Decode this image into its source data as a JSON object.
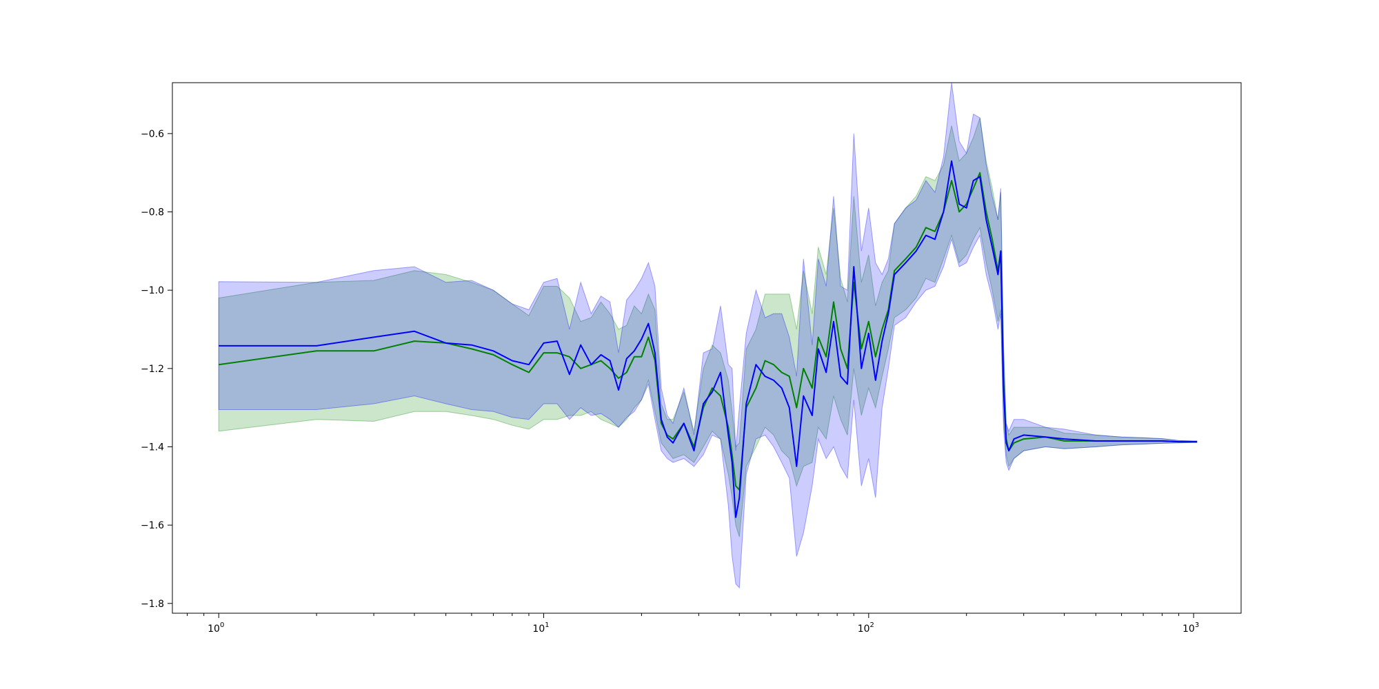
{
  "chart_data": {
    "type": "line",
    "title": "",
    "xlabel": "",
    "ylabel": "",
    "x_scale": "log",
    "xlim": [
      0.72,
      1400
    ],
    "ylim": [
      -1.825,
      -0.47
    ],
    "grid": false,
    "legend": "none",
    "x_ticks": [
      {
        "value": 1,
        "base": "10",
        "exp": "0"
      },
      {
        "value": 10,
        "base": "10",
        "exp": "1"
      },
      {
        "value": 100,
        "base": "10",
        "exp": "2"
      },
      {
        "value": 1000,
        "base": "10",
        "exp": "3"
      }
    ],
    "y_ticks": [
      {
        "value": -0.6,
        "label": "−0.6"
      },
      {
        "value": -0.8,
        "label": "−0.8"
      },
      {
        "value": -1.0,
        "label": "−1.0"
      },
      {
        "value": -1.2,
        "label": "−1.2"
      },
      {
        "value": -1.4,
        "label": "−1.4"
      },
      {
        "value": -1.6,
        "label": "−1.6"
      },
      {
        "value": -1.8,
        "label": "−1.8"
      }
    ],
    "series": [
      {
        "color": "#008000",
        "band_color": "#008000",
        "band_opacity": 0.2,
        "x": [
          1,
          2,
          3,
          4,
          5,
          6,
          7,
          8,
          9,
          10,
          11,
          12,
          13,
          14,
          15,
          16,
          17,
          18,
          19,
          20,
          21,
          22,
          23,
          24,
          25,
          27,
          29,
          31,
          33,
          35,
          37,
          38,
          39,
          40,
          42,
          45,
          48,
          51,
          54,
          57,
          60,
          63,
          67,
          70,
          74,
          78,
          82,
          86,
          90,
          95,
          100,
          105,
          110,
          115,
          120,
          130,
          140,
          150,
          160,
          170,
          180,
          190,
          200,
          210,
          220,
          230,
          240,
          250,
          255,
          260,
          265,
          270,
          280,
          300,
          350,
          400,
          500,
          600,
          700,
          800,
          900,
          1000,
          1024
        ],
        "y": [
          -1.19,
          -1.155,
          -1.155,
          -1.13,
          -1.135,
          -1.15,
          -1.165,
          -1.19,
          -1.21,
          -1.16,
          -1.16,
          -1.17,
          -1.2,
          -1.19,
          -1.18,
          -1.2,
          -1.225,
          -1.21,
          -1.17,
          -1.17,
          -1.12,
          -1.18,
          -1.34,
          -1.37,
          -1.38,
          -1.34,
          -1.4,
          -1.3,
          -1.25,
          -1.27,
          -1.35,
          -1.42,
          -1.5,
          -1.51,
          -1.3,
          -1.25,
          -1.18,
          -1.19,
          -1.21,
          -1.22,
          -1.3,
          -1.2,
          -1.25,
          -1.12,
          -1.17,
          -1.03,
          -1.15,
          -1.2,
          -0.98,
          -1.15,
          -1.08,
          -1.17,
          -1.1,
          -1.05,
          -0.95,
          -0.92,
          -0.89,
          -0.84,
          -0.85,
          -0.8,
          -0.72,
          -0.8,
          -0.78,
          -0.74,
          -0.7,
          -0.8,
          -0.87,
          -0.95,
          -0.9,
          -1.23,
          -1.38,
          -1.41,
          -1.39,
          -1.38,
          -1.375,
          -1.385,
          -1.385,
          -1.385,
          -1.385,
          -1.385,
          -1.387,
          -1.387,
          -1.387
        ],
        "lower": [
          -1.36,
          -1.33,
          -1.335,
          -1.31,
          -1.31,
          -1.32,
          -1.33,
          -1.345,
          -1.355,
          -1.33,
          -1.33,
          -1.32,
          -1.32,
          -1.31,
          -1.33,
          -1.34,
          -1.35,
          -1.33,
          -1.3,
          -1.28,
          -1.23,
          -1.31,
          -1.39,
          -1.41,
          -1.43,
          -1.42,
          -1.44,
          -1.4,
          -1.36,
          -1.38,
          -1.47,
          -1.53,
          -1.6,
          -1.63,
          -1.45,
          -1.4,
          -1.35,
          -1.37,
          -1.41,
          -1.43,
          -1.5,
          -1.45,
          -1.44,
          -1.35,
          -1.38,
          -1.27,
          -1.33,
          -1.37,
          -1.2,
          -1.32,
          -1.25,
          -1.3,
          -1.22,
          -1.15,
          -1.07,
          -1.05,
          -1.02,
          -0.97,
          -0.98,
          -0.92,
          -0.86,
          -0.93,
          -0.91,
          -0.87,
          -0.84,
          -0.93,
          -1.0,
          -1.08,
          -1.05,
          -1.33,
          -1.42,
          -1.45,
          -1.43,
          -1.41,
          -1.4,
          -1.405,
          -1.4,
          -1.395,
          -1.393,
          -1.391,
          -1.39,
          -1.389,
          -1.389
        ],
        "upper": [
          -1.02,
          -0.98,
          -0.975,
          -0.95,
          -0.96,
          -0.98,
          -1.0,
          -1.035,
          -1.065,
          -0.99,
          -0.99,
          -1.02,
          -1.08,
          -1.07,
          -1.03,
          -1.06,
          -1.1,
          -1.09,
          -1.04,
          -1.06,
          -1.01,
          -1.05,
          -1.29,
          -1.33,
          -1.33,
          -1.26,
          -1.36,
          -1.2,
          -1.14,
          -1.16,
          -1.23,
          -1.31,
          -1.4,
          -1.39,
          -1.15,
          -1.1,
          -1.01,
          -1.01,
          -1.01,
          -1.01,
          -1.1,
          -0.95,
          -1.06,
          -0.89,
          -0.96,
          -0.79,
          -0.97,
          -1.03,
          -0.76,
          -0.98,
          -0.91,
          -1.04,
          -0.98,
          -0.95,
          -0.83,
          -0.79,
          -0.76,
          -0.71,
          -0.72,
          -0.68,
          -0.58,
          -0.67,
          -0.65,
          -0.61,
          -0.56,
          -0.67,
          -0.74,
          -0.82,
          -0.75,
          -1.13,
          -1.34,
          -1.37,
          -1.35,
          -1.35,
          -1.35,
          -1.365,
          -1.37,
          -1.375,
          -1.377,
          -1.379,
          -1.384,
          -1.385,
          -1.385
        ]
      },
      {
        "color": "#0000ff",
        "band_color": "#0000ff",
        "band_opacity": 0.2,
        "x": [
          1,
          2,
          3,
          4,
          5,
          6,
          7,
          8,
          9,
          10,
          11,
          12,
          13,
          14,
          15,
          16,
          17,
          18,
          19,
          20,
          21,
          22,
          23,
          24,
          25,
          27,
          29,
          31,
          33,
          35,
          37,
          38,
          39,
          40,
          42,
          45,
          48,
          51,
          54,
          57,
          60,
          63,
          67,
          70,
          74,
          78,
          82,
          86,
          90,
          95,
          100,
          105,
          110,
          115,
          120,
          130,
          140,
          150,
          160,
          170,
          180,
          190,
          200,
          210,
          220,
          230,
          240,
          250,
          255,
          260,
          265,
          270,
          280,
          300,
          350,
          400,
          500,
          600,
          700,
          800,
          900,
          1000,
          1024
        ],
        "y": [
          -1.142,
          -1.142,
          -1.12,
          -1.105,
          -1.135,
          -1.14,
          -1.155,
          -1.18,
          -1.19,
          -1.135,
          -1.13,
          -1.215,
          -1.14,
          -1.19,
          -1.165,
          -1.18,
          -1.255,
          -1.175,
          -1.155,
          -1.125,
          -1.085,
          -1.16,
          -1.33,
          -1.375,
          -1.39,
          -1.34,
          -1.41,
          -1.29,
          -1.26,
          -1.21,
          -1.37,
          -1.44,
          -1.58,
          -1.53,
          -1.29,
          -1.19,
          -1.22,
          -1.23,
          -1.25,
          -1.3,
          -1.45,
          -1.27,
          -1.32,
          -1.15,
          -1.21,
          -1.08,
          -1.22,
          -1.24,
          -0.94,
          -1.2,
          -1.11,
          -1.23,
          -1.13,
          -1.06,
          -0.96,
          -0.93,
          -0.9,
          -0.86,
          -0.87,
          -0.8,
          -0.67,
          -0.78,
          -0.79,
          -0.72,
          -0.71,
          -0.82,
          -0.89,
          -0.96,
          -0.9,
          -1.25,
          -1.39,
          -1.41,
          -1.38,
          -1.37,
          -1.375,
          -1.38,
          -1.385,
          -1.385,
          -1.385,
          -1.385,
          -1.387,
          -1.387,
          -1.387
        ],
        "lower": [
          -1.305,
          -1.305,
          -1.29,
          -1.27,
          -1.29,
          -1.305,
          -1.31,
          -1.325,
          -1.33,
          -1.29,
          -1.29,
          -1.33,
          -1.3,
          -1.32,
          -1.315,
          -1.33,
          -1.35,
          -1.325,
          -1.31,
          -1.28,
          -1.24,
          -1.33,
          -1.41,
          -1.43,
          -1.44,
          -1.43,
          -1.45,
          -1.42,
          -1.37,
          -1.38,
          -1.55,
          -1.68,
          -1.75,
          -1.76,
          -1.47,
          -1.38,
          -1.37,
          -1.4,
          -1.44,
          -1.48,
          -1.68,
          -1.62,
          -1.5,
          -1.38,
          -1.43,
          -1.4,
          -1.45,
          -1.48,
          -1.28,
          -1.5,
          -1.43,
          -1.53,
          -1.3,
          -1.2,
          -1.09,
          -1.07,
          -1.03,
          -1.0,
          -0.99,
          -0.94,
          -0.87,
          -0.94,
          -0.93,
          -0.89,
          -0.86,
          -0.96,
          -1.02,
          -1.1,
          -1.06,
          -1.35,
          -1.44,
          -1.46,
          -1.43,
          -1.41,
          -1.4,
          -1.405,
          -1.4,
          -1.395,
          -1.393,
          -1.391,
          -1.39,
          -1.389,
          -1.389
        ],
        "upper": [
          -0.978,
          -0.98,
          -0.95,
          -0.94,
          -0.98,
          -0.975,
          -1.0,
          -1.035,
          -1.05,
          -0.98,
          -0.97,
          -1.1,
          -0.98,
          -1.06,
          -1.015,
          -1.03,
          -1.16,
          -1.025,
          -1.0,
          -0.97,
          -0.93,
          -0.99,
          -1.25,
          -1.32,
          -1.34,
          -1.25,
          -1.37,
          -1.16,
          -1.15,
          -1.04,
          -1.19,
          -1.2,
          -1.41,
          -1.3,
          -1.11,
          -1.0,
          -1.07,
          -1.06,
          -1.06,
          -1.12,
          -1.22,
          -0.92,
          -1.14,
          -0.92,
          -0.99,
          -0.76,
          -0.99,
          -1.0,
          -0.6,
          -0.9,
          -0.79,
          -0.93,
          -0.96,
          -0.92,
          -0.83,
          -0.79,
          -0.77,
          -0.72,
          -0.75,
          -0.66,
          -0.47,
          -0.62,
          -0.65,
          -0.55,
          -0.56,
          -0.68,
          -0.76,
          -0.82,
          -0.74,
          -1.15,
          -1.34,
          -1.36,
          -1.33,
          -1.33,
          -1.35,
          -1.355,
          -1.37,
          -1.375,
          -1.377,
          -1.379,
          -1.384,
          -1.385,
          -1.385
        ]
      }
    ]
  }
}
